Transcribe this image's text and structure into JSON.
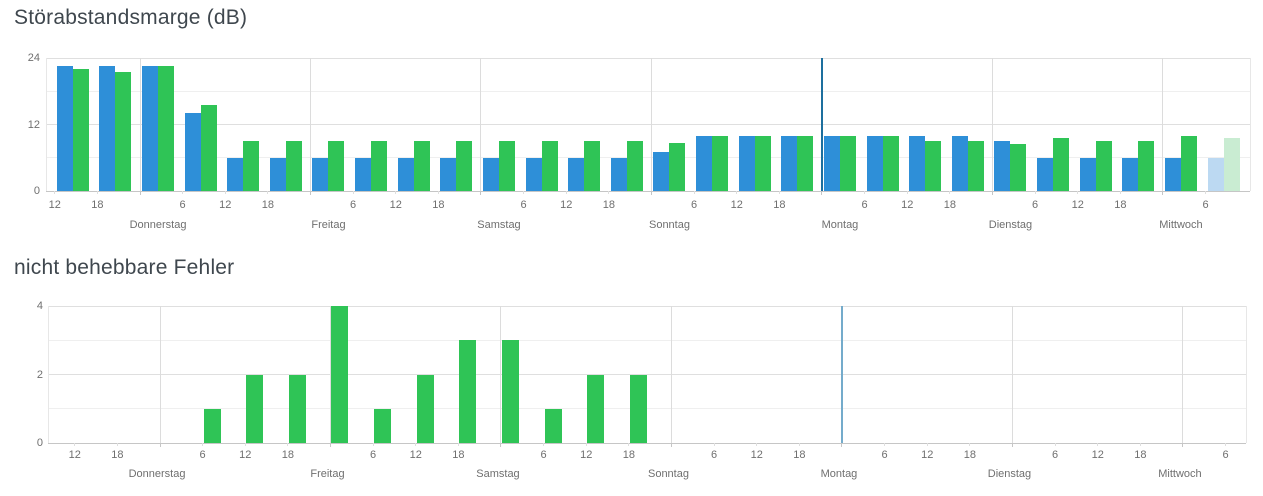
{
  "page": {
    "background": "#ffffff"
  },
  "x_axis": {
    "description": "time axis in hours, t=0 is Donnerstag 00:00, data in 6-hour slots",
    "slot_hours": [
      -12,
      -6,
      0,
      6,
      12,
      18,
      24,
      30,
      36,
      42,
      48,
      54,
      60,
      66,
      72,
      78,
      84,
      90,
      96,
      102,
      108,
      114,
      120,
      126,
      132,
      138,
      144,
      150
    ],
    "tick_labels": [
      {
        "t": -12,
        "label": "12"
      },
      {
        "t": -6,
        "label": "18"
      },
      {
        "t": 6,
        "label": "6"
      },
      {
        "t": 12,
        "label": "12"
      },
      {
        "t": 18,
        "label": "18"
      },
      {
        "t": 30,
        "label": "6"
      },
      {
        "t": 36,
        "label": "12"
      },
      {
        "t": 42,
        "label": "18"
      },
      {
        "t": 54,
        "label": "6"
      },
      {
        "t": 60,
        "label": "12"
      },
      {
        "t": 66,
        "label": "18"
      },
      {
        "t": 78,
        "label": "6"
      },
      {
        "t": 84,
        "label": "12"
      },
      {
        "t": 90,
        "label": "18"
      },
      {
        "t": 102,
        "label": "6"
      },
      {
        "t": 108,
        "label": "12"
      },
      {
        "t": 114,
        "label": "18"
      },
      {
        "t": 126,
        "label": "6"
      },
      {
        "t": 132,
        "label": "12"
      },
      {
        "t": 138,
        "label": "18"
      },
      {
        "t": 150,
        "label": "6"
      }
    ],
    "day_labels": [
      {
        "t": 0,
        "label": "Donnerstag"
      },
      {
        "t": 24,
        "label": "Freitag"
      },
      {
        "t": 48,
        "label": "Samstag"
      },
      {
        "t": 72,
        "label": "Sonntag"
      },
      {
        "t": 96,
        "label": "Montag"
      },
      {
        "t": 120,
        "label": "Dienstag"
      },
      {
        "t": 144,
        "label": "Mittwoch"
      }
    ],
    "now_marker_t": 96
  },
  "chart_data": [
    {
      "name": "stoerabstandsmarge",
      "type": "bar",
      "title": "Störabstandsmarge (dB)",
      "ylim": [
        0,
        24
      ],
      "ytick_labels": [
        "0",
        "12",
        "24"
      ],
      "grid_step": 6,
      "legend": "none",
      "faded_from_t": 150,
      "marker_color": "#1d6f9e",
      "series": [
        {
          "name": "series-blue",
          "color": "#2e8fd8",
          "faded_color": "#bcd9f2",
          "values": [
            22.5,
            22.5,
            22.5,
            14,
            6,
            6,
            6,
            6,
            6,
            6,
            6,
            6,
            6,
            6,
            7,
            10,
            10,
            10,
            10,
            10,
            10,
            10,
            9,
            6,
            6,
            6,
            6,
            6
          ]
        },
        {
          "name": "series-green",
          "color": "#2fc456",
          "faded_color": "#c9ecd2",
          "values": [
            22,
            21.5,
            22.5,
            15.5,
            9,
            9,
            9,
            9,
            9,
            9,
            9,
            9,
            9,
            9,
            8.7,
            10,
            10,
            10,
            10,
            10,
            9,
            9,
            8.5,
            9.5,
            9,
            9,
            10,
            9.5
          ]
        }
      ]
    },
    {
      "name": "nicht-behebbare-fehler",
      "type": "bar",
      "title": "nicht behebbare Fehler",
      "ylim": [
        0,
        4
      ],
      "ytick_labels": [
        "0",
        "2",
        "4"
      ],
      "grid_step": 1,
      "legend": "none",
      "faded_from_t": 150,
      "marker_color": "#74abcb",
      "series": [
        {
          "name": "series-green",
          "color": "#2fc456",
          "faded_color": "#c9ecd2",
          "values": [
            0,
            0,
            0,
            1,
            2,
            2,
            4,
            1,
            2,
            3,
            3,
            1,
            2,
            2,
            0,
            0,
            0,
            0,
            0,
            0,
            0,
            0,
            0,
            0,
            0,
            0,
            0,
            0
          ]
        }
      ]
    }
  ],
  "colors": {
    "title_text": "#3f474e",
    "axis_text": "#6f6f6f",
    "grid_major": "#dfdfdf",
    "grid_minor": "#efefef",
    "axis_line": "#c6c6c6",
    "plot_border": "#e7e7e7",
    "day_divider": "#dcdcdc"
  }
}
